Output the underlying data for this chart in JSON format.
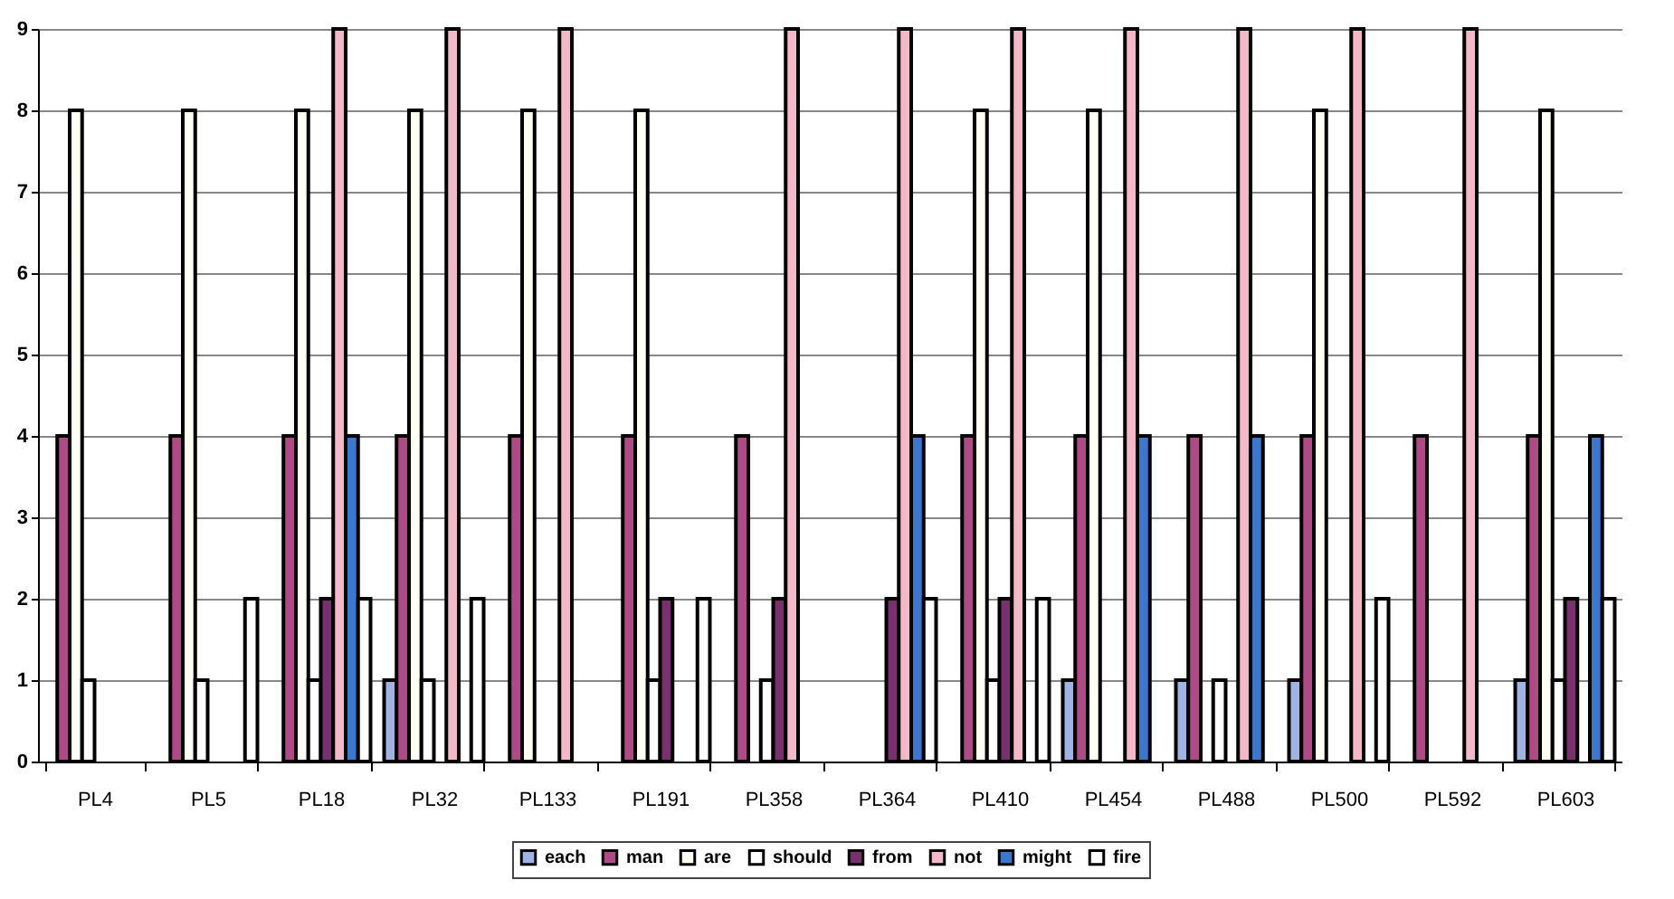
{
  "chart_data": {
    "type": "bar",
    "categories": [
      "PL4",
      "PL5",
      "PL18",
      "PL32",
      "PL133",
      "PL191",
      "PL358",
      "PL364",
      "PL410",
      "PL454",
      "PL488",
      "PL500",
      "PL592",
      "PL603"
    ],
    "series": [
      {
        "name": "each",
        "color": "#9fb4e4",
        "values": [
          null,
          null,
          null,
          1,
          null,
          null,
          null,
          null,
          null,
          1,
          1,
          1,
          null,
          1
        ]
      },
      {
        "name": "man",
        "color": "#b04a86",
        "values": [
          4,
          4,
          4,
          4,
          4,
          4,
          4,
          null,
          4,
          4,
          4,
          4,
          4,
          4
        ]
      },
      {
        "name": "are",
        "color": "#fffff4",
        "values": [
          8,
          8,
          8,
          8,
          8,
          8,
          null,
          null,
          8,
          8,
          null,
          8,
          null,
          8
        ]
      },
      {
        "name": "should",
        "color": "#ffffff",
        "values": [
          1,
          1,
          1,
          1,
          null,
          1,
          1,
          null,
          1,
          null,
          1,
          null,
          null,
          1
        ]
      },
      {
        "name": "from",
        "color": "#7a2f6e",
        "values": [
          null,
          null,
          2,
          null,
          null,
          2,
          2,
          2,
          2,
          null,
          null,
          null,
          null,
          2
        ]
      },
      {
        "name": "not",
        "color": "#f4b8c8",
        "values": [
          null,
          null,
          9,
          9,
          9,
          null,
          9,
          9,
          9,
          9,
          9,
          9,
          9,
          null
        ]
      },
      {
        "name": "might",
        "color": "#3a78d0",
        "values": [
          null,
          null,
          4,
          null,
          null,
          null,
          null,
          4,
          null,
          4,
          4,
          null,
          null,
          4
        ]
      },
      {
        "name": "fire",
        "color": "#fefefe",
        "values": [
          null,
          2,
          2,
          2,
          null,
          2,
          null,
          2,
          2,
          null,
          null,
          2,
          null,
          2
        ]
      }
    ],
    "ylim": [
      0,
      9
    ],
    "yticks": [
      0,
      1,
      2,
      3,
      4,
      5,
      6,
      7,
      8,
      9
    ],
    "grid": "y",
    "legend": "bottom"
  }
}
